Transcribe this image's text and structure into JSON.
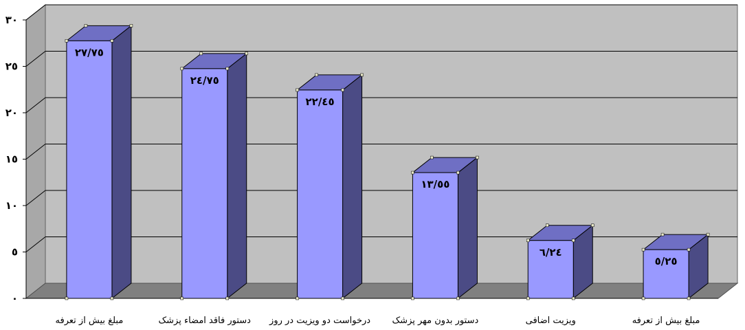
{
  "chart_data": {
    "type": "bar",
    "categories": [
      "مبلغ بیش از تعرفه",
      "دستور فاقد امضاء پزشک",
      "درخواست دو ویزیت در روز",
      "دستور بدون مهر پزشک",
      "ویزیت اضافی",
      "مبلغ بیش از تعرفه"
    ],
    "values": [
      27.75,
      24.75,
      22.45,
      13.55,
      6.24,
      5.25
    ],
    "data_labels": [
      "٢٧/٧٥",
      "٢٤/٧٥",
      "٢٢/٤٥",
      "١٣/٥٥",
      "٦/٢٤",
      "٥/٢٥"
    ],
    "ylim": [
      0,
      30
    ],
    "yticks": [
      0,
      5,
      10,
      15,
      20,
      25,
      30
    ],
    "ytick_labels": [
      "٠",
      "٥",
      "١٠",
      "١٥",
      "٢٠",
      "٢٥",
      "٣٠"
    ],
    "grid": true,
    "legend": "none",
    "colors": {
      "wall": "#c0c0c0",
      "floor": "#808080",
      "bar_front": "#9999ff",
      "bar_side": "#4b4b85",
      "bar_top": "#6f6fc4",
      "gridline": "#000000"
    }
  }
}
